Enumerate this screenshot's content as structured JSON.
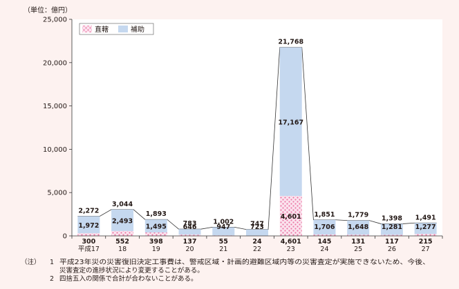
{
  "chart_data": {
    "type": "bar",
    "stacked": true,
    "unit_label": "（単位：億円）",
    "categories": [
      "平成17",
      "18",
      "19",
      "20",
      "21",
      "22",
      "23",
      "24",
      "25",
      "26",
      "27"
    ],
    "series": [
      {
        "name": "直轄",
        "color": "#f6b8d2",
        "pattern": "dots",
        "values": [
          300,
          552,
          398,
          137,
          55,
          24,
          4601,
          145,
          131,
          117,
          215
        ]
      },
      {
        "name": "補助",
        "color": "#c5d8ef",
        "pattern": "solid",
        "values": [
          1972,
          2493,
          1495,
          646,
          947,
          723,
          17167,
          1706,
          1648,
          1281,
          1277
        ]
      }
    ],
    "totals": [
      2272,
      3044,
      1893,
      783,
      1002,
      747,
      21768,
      1851,
      1779,
      1398,
      1491
    ],
    "labels": {
      "chokkatsu": [
        "300",
        "552",
        "398",
        "137",
        "55",
        "24",
        "4,601",
        "145",
        "131",
        "117",
        "215"
      ],
      "hojo": [
        "1,972",
        "2,493",
        "1,495",
        "646",
        "947",
        "723",
        "17,167",
        "1,706",
        "1,648",
        "1,281",
        "1,277"
      ],
      "total": [
        "2,272",
        "3,044",
        "1,893",
        "783",
        "1,002",
        "747",
        "21,768",
        "1,851",
        "1,779",
        "1,398",
        "1,491"
      ]
    },
    "ylim": [
      0,
      25000
    ],
    "yticks": [
      0,
      5000,
      10000,
      15000,
      20000,
      25000
    ],
    "ytick_labels": [
      "0",
      "5,000",
      "10,000",
      "15,000",
      "20,000",
      "25,000"
    ],
    "grid": false,
    "legend_position": "top-left"
  },
  "notes": {
    "prefix": "（注）",
    "items": [
      {
        "num": "1",
        "lines": [
          "平成23年災の災害復旧決定工事費は、警戒区域・計画的避難区域内等の災害査定が実施できないため、今後、",
          "災害査定の進捗状況により変更することがある。"
        ]
      },
      {
        "num": "2",
        "lines": [
          "四捨五入の関係で合計が合わないことがある。"
        ]
      }
    ]
  }
}
